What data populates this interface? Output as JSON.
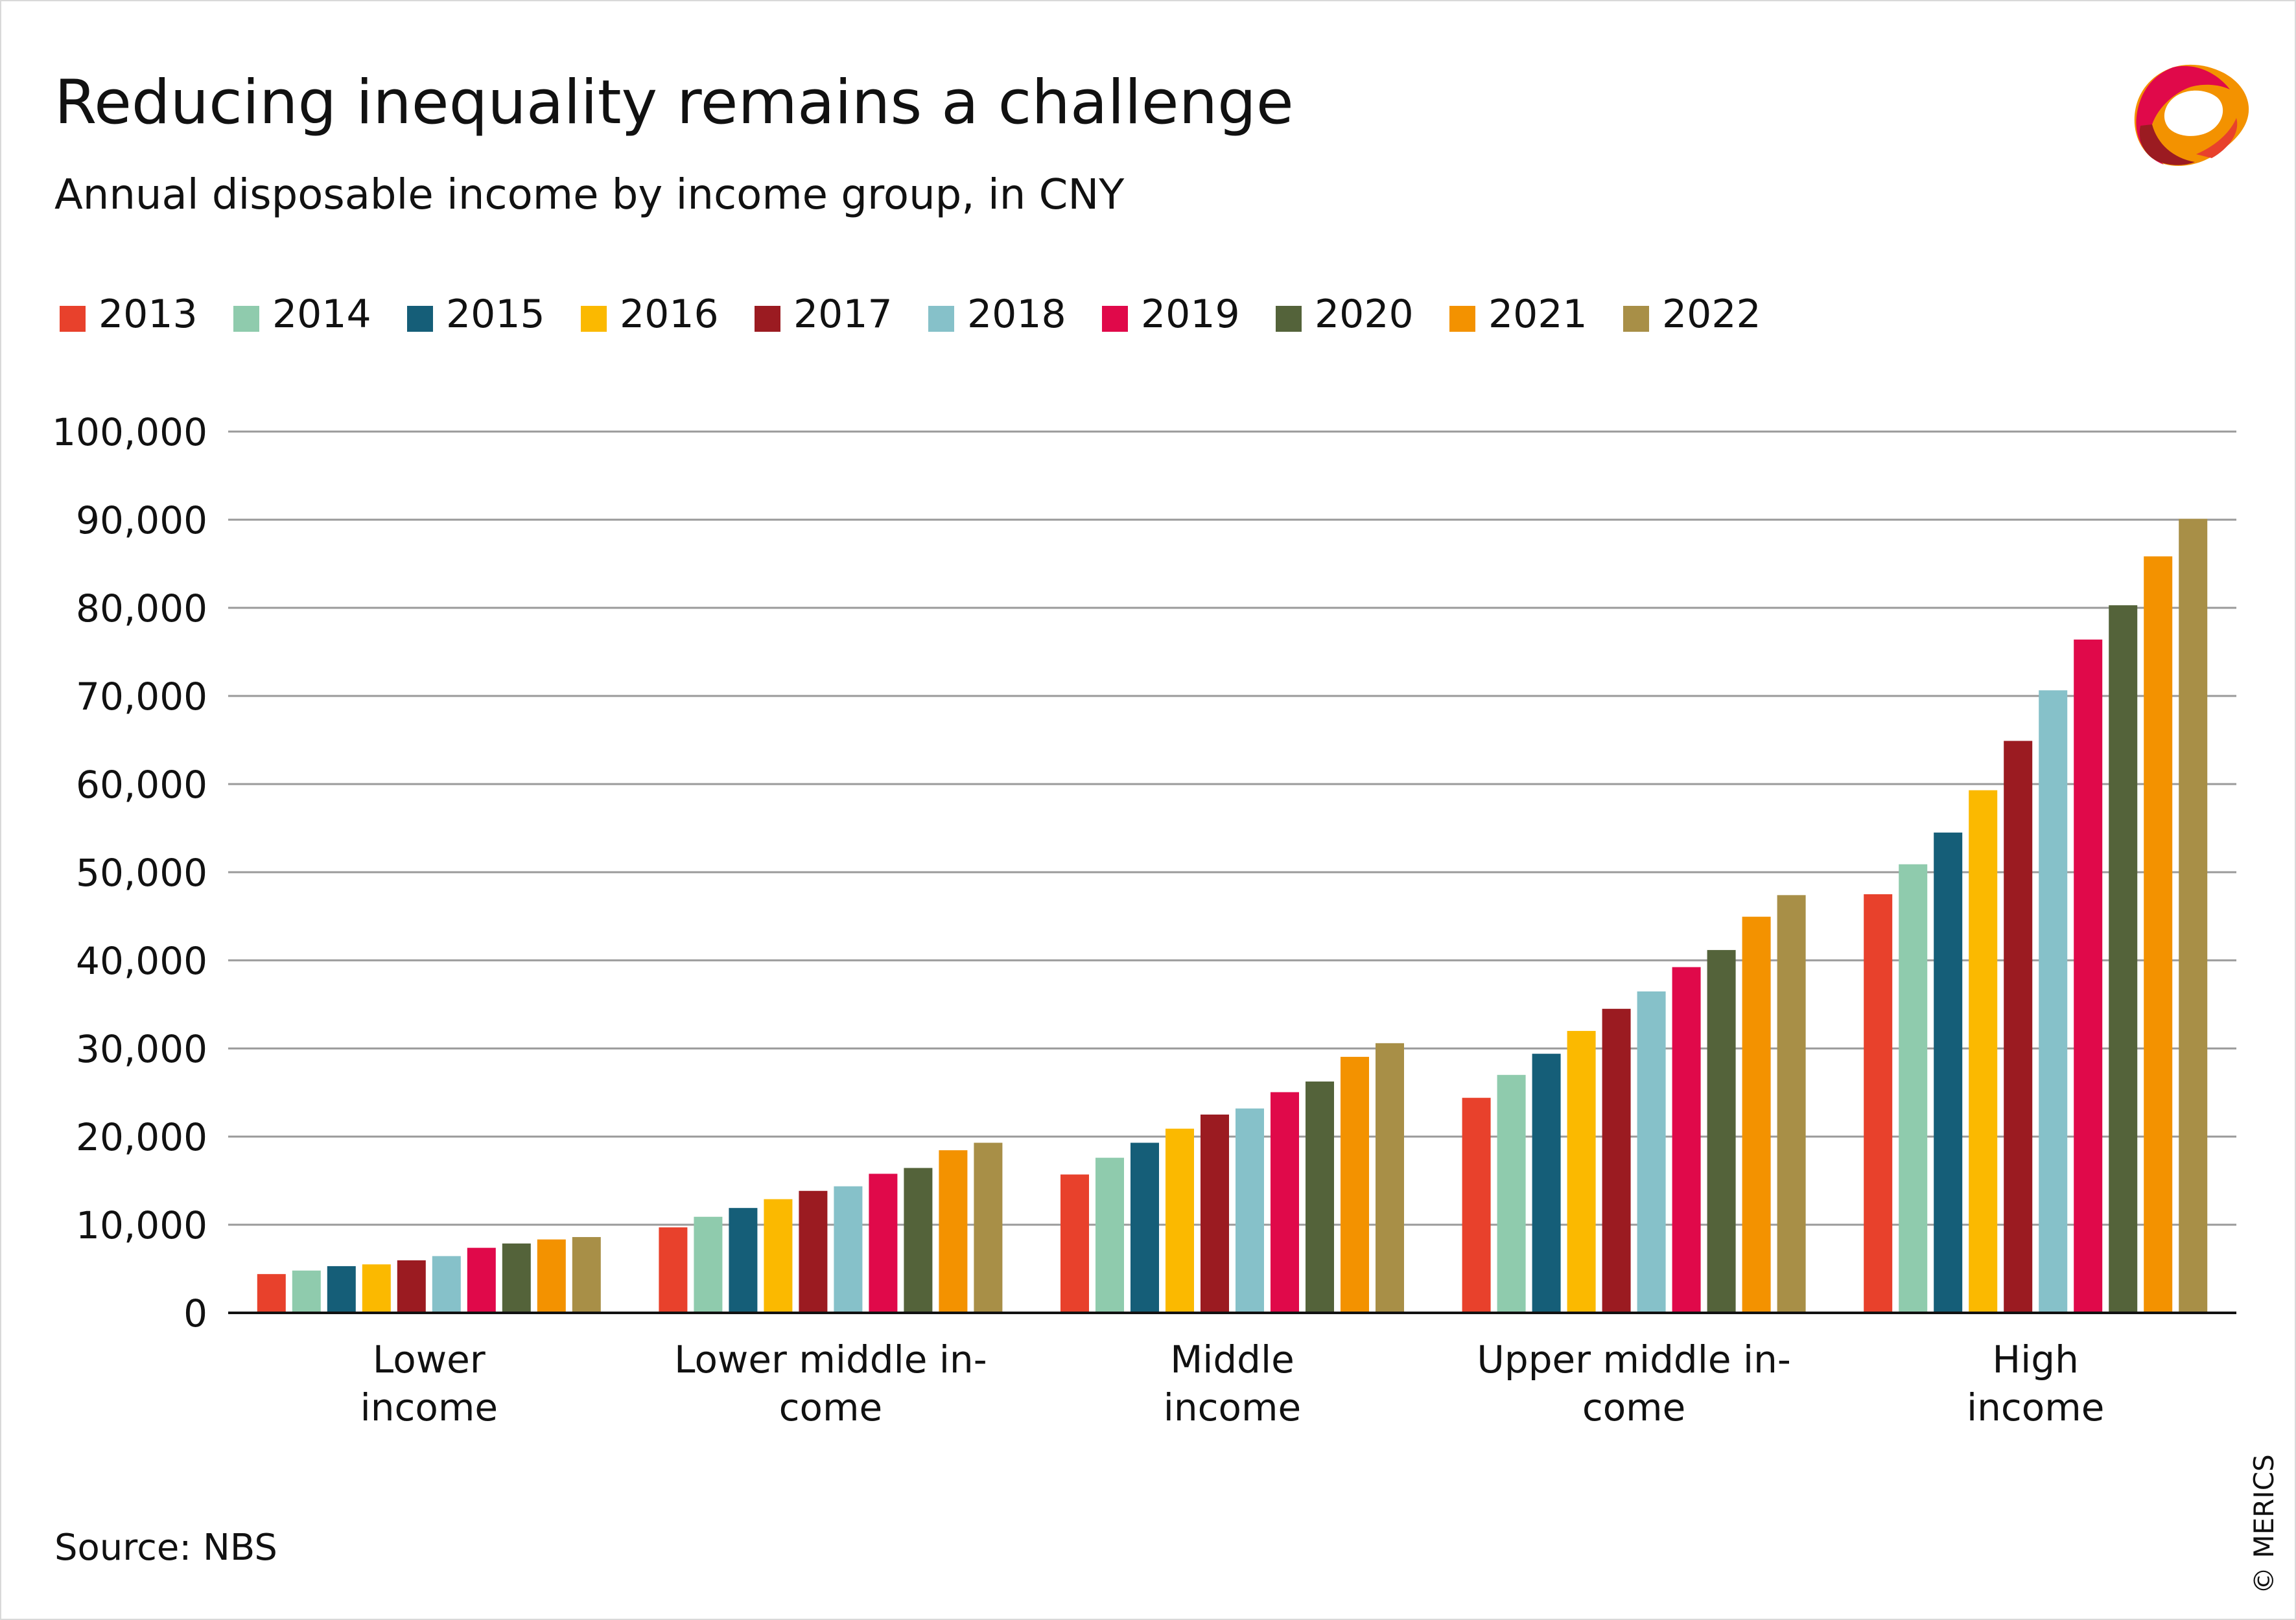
{
  "header": {
    "title": "Reducing inequality remains a challenge",
    "subtitle": "Annual disposable income by income group, in CNY"
  },
  "footer": {
    "source": "Source: NBS",
    "copyright": "© MERICS"
  },
  "logo": {
    "icon": "merics-logo-icon"
  },
  "chart_data": {
    "type": "bar",
    "title": "Reducing inequality remains a challenge",
    "subtitle": "Annual disposable income by income group, in CNY",
    "xlabel": "",
    "ylabel": "",
    "ylim": [
      0,
      100000
    ],
    "yticks": [
      0,
      10000,
      20000,
      30000,
      40000,
      50000,
      60000,
      70000,
      80000,
      90000,
      100000
    ],
    "ytick_labels": [
      "0",
      "10,000",
      "20,000",
      "30,000",
      "40,000",
      "50,000",
      "60,000",
      "70,000",
      "80,000",
      "90,000",
      "100,000"
    ],
    "grid": true,
    "legend_position": "top-left",
    "categories": [
      [
        "Lower",
        "income"
      ],
      [
        "Lower middle in-",
        "come"
      ],
      [
        "Middle",
        "income"
      ],
      [
        "Upper middle in-",
        "come"
      ],
      [
        "High",
        "income"
      ]
    ],
    "series": [
      {
        "name": "2013",
        "color": "#e8412c",
        "values": [
          4400,
          9700,
          15700,
          24400,
          47500
        ]
      },
      {
        "name": "2014",
        "color": "#8fcbad",
        "values": [
          4800,
          10900,
          17600,
          27000,
          50900
        ]
      },
      {
        "name": "2015",
        "color": "#155e78",
        "values": [
          5300,
          11900,
          19300,
          29400,
          54500
        ]
      },
      {
        "name": "2016",
        "color": "#fbb900",
        "values": [
          5500,
          12900,
          20900,
          31990,
          59300
        ]
      },
      {
        "name": "2017",
        "color": "#9b1b21",
        "values": [
          5960,
          13840,
          22500,
          34500,
          64900
        ]
      },
      {
        "name": "2018",
        "color": "#86c1c9",
        "values": [
          6440,
          14360,
          23190,
          36470,
          70640
        ]
      },
      {
        "name": "2019",
        "color": "#e0094a",
        "values": [
          7380,
          15780,
          25040,
          39230,
          76400
        ]
      },
      {
        "name": "2020",
        "color": "#54633a",
        "values": [
          7870,
          16440,
          26250,
          41170,
          80290
        ]
      },
      {
        "name": "2021",
        "color": "#f39200",
        "values": [
          8330,
          18450,
          29050,
          44950,
          85840
        ]
      },
      {
        "name": "2022",
        "color": "#a88f47",
        "values": [
          8600,
          19300,
          30600,
          47400,
          90100
        ]
      }
    ]
  }
}
